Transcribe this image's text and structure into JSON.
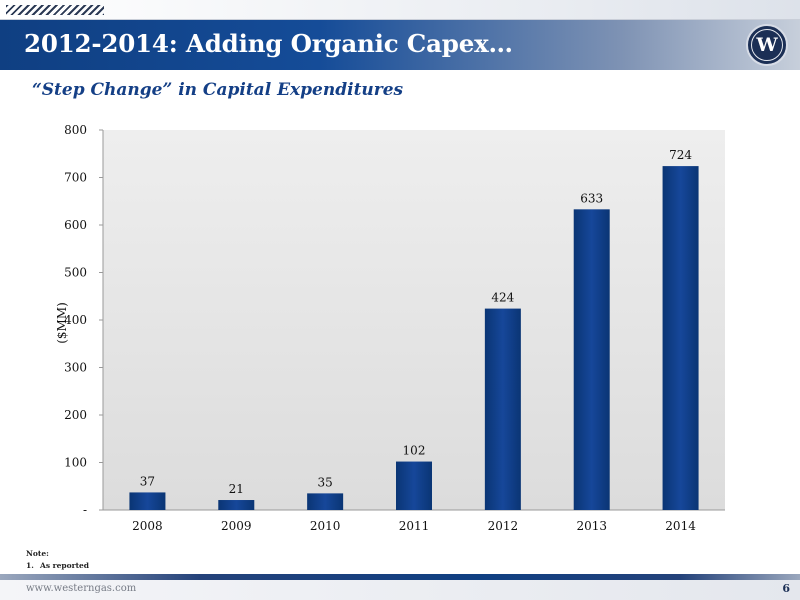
{
  "header": {
    "title": "2012-2014: Adding Organic Capex…",
    "subtitle": "“Step Change” in Capital Expenditures",
    "logo_letter": "W",
    "logo_icon": "company-logo-icon"
  },
  "colors": {
    "bar": "#0e3e85",
    "banner": "#154c98",
    "subtitle": "#143f86",
    "plot_bg": "#e6e6e6"
  },
  "chart_data": {
    "type": "bar",
    "categories": [
      "2008",
      "2009",
      "2010",
      "2011",
      "2012",
      "2013",
      "2014"
    ],
    "values": [
      37,
      21,
      35,
      102,
      424,
      633,
      724
    ],
    "data_labels": [
      "37",
      "21",
      "35",
      "102",
      "424",
      "633",
      "724"
    ],
    "ylabel": "($MM)",
    "ylim": [
      0,
      800
    ],
    "yticks": [
      0,
      100,
      200,
      300,
      400,
      500,
      600,
      700,
      800
    ],
    "ytick_labels": [
      "-",
      "100",
      "200",
      "300",
      "400",
      "500",
      "600",
      "700",
      "800"
    ],
    "grid": false,
    "legend": "none"
  },
  "notes": {
    "title": "Note:",
    "items": [
      {
        "number": "1.",
        "text": "As reported"
      }
    ]
  },
  "footer": {
    "url": "www.westerngas.com",
    "page_number": "6"
  }
}
